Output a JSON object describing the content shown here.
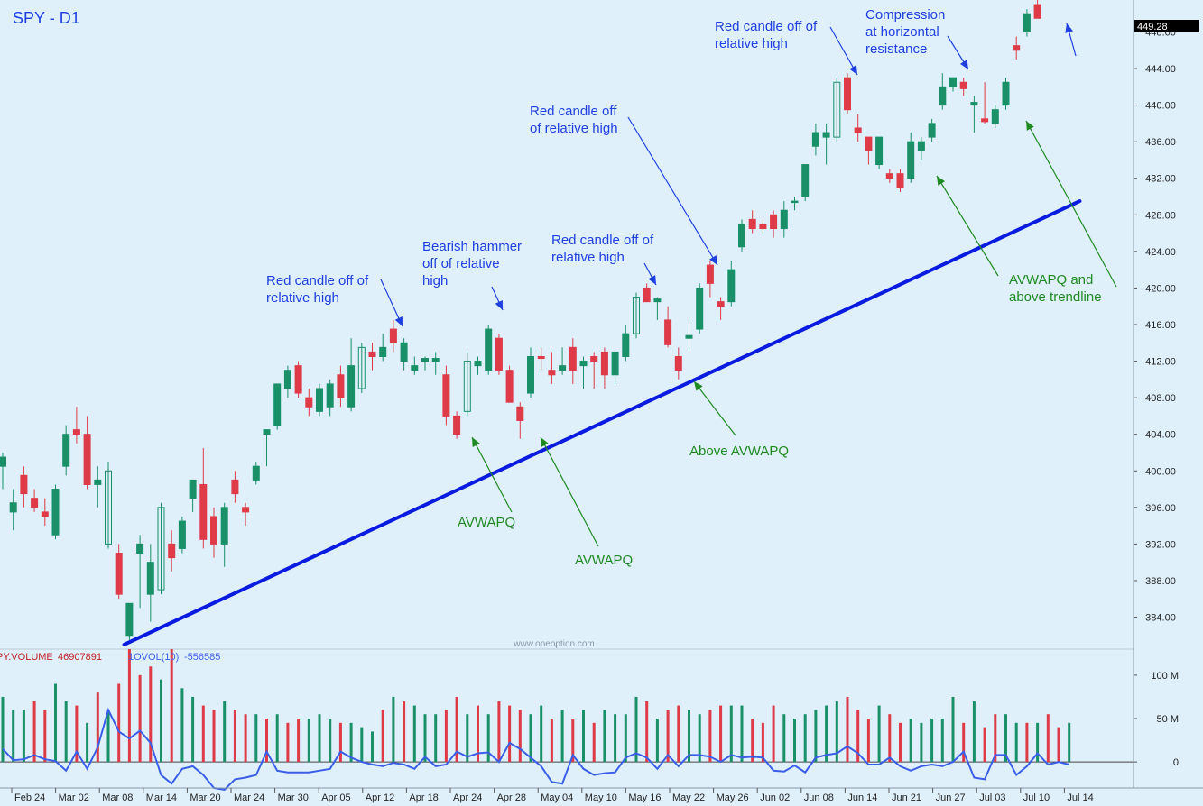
{
  "chart_data": {
    "type": "candlestick",
    "title": "SPY - D1",
    "watermark": "www.oneoption.com",
    "price_axis": {
      "ylim": [
        380.5,
        451.5
      ],
      "ticks": [
        384,
        388,
        392,
        396,
        400,
        404,
        408,
        412,
        416,
        420,
        424,
        428,
        432,
        436,
        440,
        444,
        448
      ],
      "last_price_label": "449.28"
    },
    "x_ticks": [
      "Feb 24",
      "Mar 02",
      "Mar 08",
      "Mar 14",
      "Mar 20",
      "Mar 24",
      "Mar 30",
      "Apr 05",
      "Apr 12",
      "Apr 18",
      "Apr 24",
      "Apr 28",
      "May 04",
      "May 10",
      "May 16",
      "May 22",
      "May 26",
      "Jun 02",
      "Jun 08",
      "Jun 14",
      "Jun 21",
      "Jun 27",
      "Jul 03",
      "Jul 10",
      "Jul 14"
    ],
    "candles": [
      {
        "o": 400.5,
        "h": 402.0,
        "l": 398.0,
        "c": 401.5
      },
      {
        "o": 395.5,
        "h": 398.0,
        "l": 393.5,
        "c": 396.5
      },
      {
        "o": 399.5,
        "h": 400.5,
        "l": 396.0,
        "c": 397.5
      },
      {
        "o": 397.0,
        "h": 398.0,
        "l": 395.5,
        "c": 396.0
      },
      {
        "o": 395.5,
        "h": 397.0,
        "l": 394.0,
        "c": 395.0
      },
      {
        "o": 393.0,
        "h": 398.5,
        "l": 392.5,
        "c": 398.0
      },
      {
        "o": 400.5,
        "h": 405.0,
        "l": 399.5,
        "c": 404.0
      },
      {
        "o": 404.5,
        "h": 407.0,
        "l": 403.0,
        "c": 404.0
      },
      {
        "o": 404.0,
        "h": 406.0,
        "l": 398.0,
        "c": 398.5
      },
      {
        "o": 398.5,
        "h": 400.5,
        "l": 396.0,
        "c": 399.0
      },
      {
        "o": 392.0,
        "h": 401.0,
        "l": 391.5,
        "c": 400.0,
        "hollow": true
      },
      {
        "o": 391.0,
        "h": 392.0,
        "l": 386.0,
        "c": 386.5
      },
      {
        "o": 382.0,
        "h": 385.0,
        "l": 381.5,
        "c": 385.5
      },
      {
        "o": 391.0,
        "h": 393.0,
        "l": 385.0,
        "c": 392.0
      },
      {
        "o": 386.5,
        "h": 392.0,
        "l": 383.5,
        "c": 390.0
      },
      {
        "o": 387.0,
        "h": 396.5,
        "l": 386.5,
        "c": 396.0,
        "hollow": true
      },
      {
        "o": 392.0,
        "h": 393.5,
        "l": 389.0,
        "c": 390.5
      },
      {
        "o": 391.5,
        "h": 395.0,
        "l": 391.0,
        "c": 394.5
      },
      {
        "o": 397.0,
        "h": 399.0,
        "l": 395.5,
        "c": 399.0
      },
      {
        "o": 398.5,
        "h": 402.5,
        "l": 391.5,
        "c": 392.5
      },
      {
        "o": 395.0,
        "h": 396.0,
        "l": 390.5,
        "c": 392.0
      },
      {
        "o": 392.0,
        "h": 396.5,
        "l": 389.5,
        "c": 396.0
      },
      {
        "o": 399.0,
        "h": 400.0,
        "l": 396.5,
        "c": 397.5
      },
      {
        "o": 396.0,
        "h": 396.5,
        "l": 394.0,
        "c": 395.5
      },
      {
        "o": 399.0,
        "h": 401.0,
        "l": 398.5,
        "c": 400.5
      },
      {
        "o": 404.0,
        "h": 404.5,
        "l": 400.5,
        "c": 404.5
      },
      {
        "o": 405.0,
        "h": 409.5,
        "l": 404.5,
        "c": 409.5
      },
      {
        "o": 409.0,
        "h": 411.5,
        "l": 408.0,
        "c": 411.0
      },
      {
        "o": 411.5,
        "h": 412.0,
        "l": 408.0,
        "c": 408.5
      },
      {
        "o": 408.0,
        "h": 409.0,
        "l": 406.0,
        "c": 407.0
      },
      {
        "o": 406.5,
        "h": 409.5,
        "l": 406.0,
        "c": 409.0
      },
      {
        "o": 407.0,
        "h": 410.0,
        "l": 406.0,
        "c": 409.5
      },
      {
        "o": 410.5,
        "h": 411.5,
        "l": 407.0,
        "c": 408.0
      },
      {
        "o": 407.0,
        "h": 414.5,
        "l": 406.5,
        "c": 411.5
      },
      {
        "o": 409.0,
        "h": 414.0,
        "l": 408.5,
        "c": 413.5,
        "hollow": true
      },
      {
        "o": 413.0,
        "h": 414.0,
        "l": 411.0,
        "c": 412.5
      },
      {
        "o": 412.5,
        "h": 415.0,
        "l": 412.0,
        "c": 413.5
      },
      {
        "o": 415.5,
        "h": 416.5,
        "l": 413.0,
        "c": 414.0
      },
      {
        "o": 412.0,
        "h": 414.5,
        "l": 411.0,
        "c": 414.0
      },
      {
        "o": 411.0,
        "h": 412.5,
        "l": 410.5,
        "c": 411.5
      },
      {
        "o": 412.0,
        "h": 412.5,
        "l": 411.0,
        "c": 412.3
      },
      {
        "o": 412.0,
        "h": 413.0,
        "l": 410.5,
        "c": 412.3
      },
      {
        "o": 410.5,
        "h": 411.5,
        "l": 405.0,
        "c": 406.0
      },
      {
        "o": 406.0,
        "h": 406.5,
        "l": 403.5,
        "c": 404.0
      },
      {
        "o": 406.5,
        "h": 413.0,
        "l": 406.0,
        "c": 412.0,
        "hollow": true
      },
      {
        "o": 411.5,
        "h": 412.5,
        "l": 410.5,
        "c": 412.0
      },
      {
        "o": 411.0,
        "h": 416.0,
        "l": 410.5,
        "c": 415.5
      },
      {
        "o": 414.5,
        "h": 415.0,
        "l": 410.5,
        "c": 411.0
      },
      {
        "o": 411.0,
        "h": 411.5,
        "l": 407.5,
        "c": 407.5
      },
      {
        "o": 407.0,
        "h": 407.5,
        "l": 403.5,
        "c": 405.5
      },
      {
        "o": 408.5,
        "h": 413.5,
        "l": 408.0,
        "c": 412.5
      },
      {
        "o": 412.5,
        "h": 413.5,
        "l": 411.0,
        "c": 412.3
      },
      {
        "o": 411.0,
        "h": 413.0,
        "l": 409.5,
        "c": 410.5
      },
      {
        "o": 411.0,
        "h": 413.5,
        "l": 410.5,
        "c": 411.5
      },
      {
        "o": 413.5,
        "h": 414.5,
        "l": 409.5,
        "c": 411.0
      },
      {
        "o": 411.5,
        "h": 412.5,
        "l": 409.0,
        "c": 412.0
      },
      {
        "o": 412.5,
        "h": 413.0,
        "l": 409.0,
        "c": 412.0
      },
      {
        "o": 413.0,
        "h": 413.5,
        "l": 409.0,
        "c": 410.5
      },
      {
        "o": 410.5,
        "h": 413.0,
        "l": 409.5,
        "c": 413.0
      },
      {
        "o": 412.5,
        "h": 416.0,
        "l": 412.0,
        "c": 415.0
      },
      {
        "o": 415.0,
        "h": 419.5,
        "l": 414.5,
        "c": 419.0,
        "hollow": true
      },
      {
        "o": 420.0,
        "h": 420.5,
        "l": 418.5,
        "c": 418.5
      },
      {
        "o": 418.5,
        "h": 419.0,
        "l": 416.5,
        "c": 418.8
      },
      {
        "o": 416.5,
        "h": 418.0,
        "l": 413.5,
        "c": 413.8
      },
      {
        "o": 412.5,
        "h": 413.5,
        "l": 410.0,
        "c": 411.0
      },
      {
        "o": 414.5,
        "h": 416.5,
        "l": 413.0,
        "c": 414.8
      },
      {
        "o": 415.5,
        "h": 420.5,
        "l": 415.0,
        "c": 420.0
      },
      {
        "o": 422.5,
        "h": 423.0,
        "l": 419.0,
        "c": 420.5
      },
      {
        "o": 418.5,
        "h": 419.0,
        "l": 416.5,
        "c": 418.0
      },
      {
        "o": 418.5,
        "h": 423.0,
        "l": 418.0,
        "c": 422.0
      },
      {
        "o": 424.5,
        "h": 427.5,
        "l": 424.0,
        "c": 427.0
      },
      {
        "o": 427.5,
        "h": 428.5,
        "l": 426.0,
        "c": 426.5
      },
      {
        "o": 427.0,
        "h": 427.5,
        "l": 426.0,
        "c": 426.5
      },
      {
        "o": 428.0,
        "h": 428.5,
        "l": 425.5,
        "c": 426.5
      },
      {
        "o": 426.5,
        "h": 429.5,
        "l": 425.5,
        "c": 428.5
      },
      {
        "o": 429.5,
        "h": 430.0,
        "l": 428.5,
        "c": 429.5
      },
      {
        "o": 430.0,
        "h": 433.5,
        "l": 429.5,
        "c": 433.5
      },
      {
        "o": 435.5,
        "h": 438.0,
        "l": 434.5,
        "c": 437.0
      },
      {
        "o": 436.5,
        "h": 438.0,
        "l": 433.5,
        "c": 437.0
      },
      {
        "o": 436.5,
        "h": 443.0,
        "l": 436.0,
        "c": 442.5,
        "hollow": true
      },
      {
        "o": 443.0,
        "h": 443.5,
        "l": 439.0,
        "c": 439.5
      },
      {
        "o": 437.5,
        "h": 439.0,
        "l": 436.0,
        "c": 437.0
      },
      {
        "o": 436.5,
        "h": 436.5,
        "l": 433.5,
        "c": 435.0
      },
      {
        "o": 433.5,
        "h": 436.5,
        "l": 433.0,
        "c": 436.5
      },
      {
        "o": 432.5,
        "h": 433.0,
        "l": 431.5,
        "c": 432.0
      },
      {
        "o": 432.5,
        "h": 433.0,
        "l": 430.5,
        "c": 431.0
      },
      {
        "o": 432.0,
        "h": 437.0,
        "l": 431.5,
        "c": 436.0
      },
      {
        "o": 435.0,
        "h": 436.5,
        "l": 434.0,
        "c": 436.0
      },
      {
        "o": 436.5,
        "h": 438.5,
        "l": 436.0,
        "c": 438.0
      },
      {
        "o": 440.0,
        "h": 443.5,
        "l": 439.5,
        "c": 442.0
      },
      {
        "o": 442.0,
        "h": 443.0,
        "l": 441.5,
        "c": 443.0
      },
      {
        "o": 442.5,
        "h": 443.0,
        "l": 441.0,
        "c": 441.8
      },
      {
        "o": 440.0,
        "h": 441.0,
        "l": 437.0,
        "c": 440.3
      },
      {
        "o": 438.5,
        "h": 442.5,
        "l": 438.0,
        "c": 438.2
      },
      {
        "o": 438.0,
        "h": 440.0,
        "l": 437.5,
        "c": 439.5
      },
      {
        "o": 440.0,
        "h": 443.0,
        "l": 439.5,
        "c": 442.5
      },
      {
        "o": 446.5,
        "h": 447.5,
        "l": 445.0,
        "c": 446.0
      },
      {
        "o": 448.0,
        "h": 450.5,
        "l": 447.5,
        "c": 450.0
      },
      {
        "o": 451.0,
        "h": 451.5,
        "l": 449.5,
        "c": 449.5
      }
    ],
    "volume_axis": {
      "ylim": [
        -30,
        130
      ],
      "ticks": [
        {
          "v": 0,
          "label": "0"
        },
        {
          "v": 50,
          "label": "50 M"
        },
        {
          "v": 100,
          "label": "100 M"
        }
      ]
    },
    "volume_header": {
      "series_name": "PY.VOLUME",
      "series_value": "46907891",
      "indicator_name": "1OVOL(10)",
      "indicator_value": "-556585"
    },
    "volume": [
      75,
      60,
      60,
      70,
      60,
      90,
      70,
      65,
      45,
      80,
      60,
      90,
      130,
      100,
      110,
      95,
      130,
      85,
      75,
      65,
      60,
      70,
      60,
      55,
      55,
      50,
      55,
      45,
      50,
      50,
      55,
      50,
      45,
      45,
      40,
      35,
      60,
      75,
      70,
      65,
      55,
      55,
      60,
      75,
      55,
      65,
      55,
      70,
      65,
      60,
      55,
      65,
      50,
      60,
      50,
      60,
      45,
      60,
      55,
      55,
      75,
      70,
      50,
      60,
      65,
      60,
      55,
      60,
      65,
      65,
      65,
      50,
      45,
      65,
      55,
      50,
      55,
      60,
      65,
      70,
      75,
      60,
      50,
      65,
      55,
      45,
      50,
      45,
      50,
      50,
      75,
      45,
      70,
      40,
      55,
      55,
      45,
      45,
      45,
      55,
      40,
      45
    ],
    "volume_colors": [
      "g",
      "g",
      "g",
      "r",
      "r",
      "g",
      "g",
      "r",
      "g",
      "r",
      "g",
      "r",
      "r",
      "r",
      "r",
      "g",
      "r",
      "g",
      "g",
      "r",
      "r",
      "g",
      "r",
      "r",
      "g",
      "r",
      "g",
      "r",
      "r",
      "g",
      "g",
      "g",
      "r",
      "g",
      "g",
      "g",
      "r",
      "g",
      "r",
      "g",
      "g",
      "g",
      "r",
      "r",
      "g",
      "r",
      "g",
      "r",
      "r",
      "r",
      "g",
      "g",
      "r",
      "g",
      "r",
      "g",
      "r",
      "g",
      "g",
      "g",
      "g",
      "r",
      "g",
      "r",
      "r",
      "g",
      "g",
      "r",
      "r",
      "g",
      "g",
      "r",
      "r",
      "r",
      "g",
      "g",
      "g",
      "g",
      "g",
      "g",
      "r",
      "r",
      "r",
      "g",
      "r",
      "r",
      "g",
      "g",
      "g",
      "g",
      "g",
      "r",
      "g",
      "r",
      "r",
      "g",
      "g",
      "r",
      "g",
      "r",
      "r",
      "g"
    ],
    "oscillator": [
      15,
      2,
      3,
      8,
      3,
      1,
      -10,
      12,
      -8,
      17,
      60,
      35,
      27,
      36,
      22,
      -15,
      -25,
      -8,
      -5,
      -15,
      -30,
      -32,
      -20,
      -18,
      -15,
      12,
      -10,
      -12,
      -12,
      -12,
      -10,
      -8,
      12,
      5,
      0,
      -3,
      -5,
      -1,
      -3,
      -8,
      6,
      -5,
      -3,
      12,
      6,
      10,
      11,
      0,
      22,
      15,
      5,
      -5,
      -23,
      -25,
      8,
      -8,
      -15,
      -13,
      -12,
      5,
      10,
      5,
      -8,
      8,
      -5,
      8,
      8,
      6,
      0,
      8,
      5,
      6,
      5,
      -10,
      -11,
      -4,
      -12,
      5,
      8,
      10,
      18,
      10,
      -3,
      -3,
      5,
      -5,
      -10,
      -5,
      -3,
      -5,
      0,
      12,
      -18,
      -20,
      8,
      8,
      -15,
      -5,
      10,
      -3,
      0,
      -3
    ],
    "trendline": [
      {
        "candle": 11.5,
        "price": 381.0
      },
      {
        "candle": 102.0,
        "price": 429.5
      }
    ],
    "annotations": [
      {
        "lines": [
          "Red candle off of",
          "relative high"
        ],
        "color": "#1f3fe0"
      },
      {
        "lines": [
          "Bearish hammer",
          "off of relative",
          "high"
        ],
        "color": "#1f3fe0"
      },
      {
        "lines": [
          "Red candle off of",
          "relative high"
        ],
        "color": "#1f3fe0"
      },
      {
        "lines": [
          "Red candle off",
          "of relative high"
        ],
        "color": "#1f3fe0"
      },
      {
        "lines": [
          "Red candle off of",
          "relative high"
        ],
        "color": "#1f3fe0"
      },
      {
        "lines": [
          "Compression",
          "at horizontal",
          "resistance"
        ],
        "color": "#1f3fe0"
      },
      {
        "lines": [
          "AVWAPQ"
        ],
        "color": "#1f8a22"
      },
      {
        "lines": [
          "AVWAPQ"
        ],
        "color": "#1f8a22"
      },
      {
        "lines": [
          "Above AVWAPQ"
        ],
        "color": "#1f8a22"
      },
      {
        "lines": [
          "AVWAPQ and",
          "above trendline"
        ],
        "color": "#1f8a22"
      }
    ],
    "colors": {
      "background": "#dff0fb",
      "up": "#1a9068",
      "down": "#de3a48",
      "trendline": "#0a1be0",
      "annotation_blue": "#1f3fe0",
      "annotation_green": "#1f8a22",
      "oscillator": "#3b5ee8",
      "title": "#1f3fe0"
    }
  }
}
